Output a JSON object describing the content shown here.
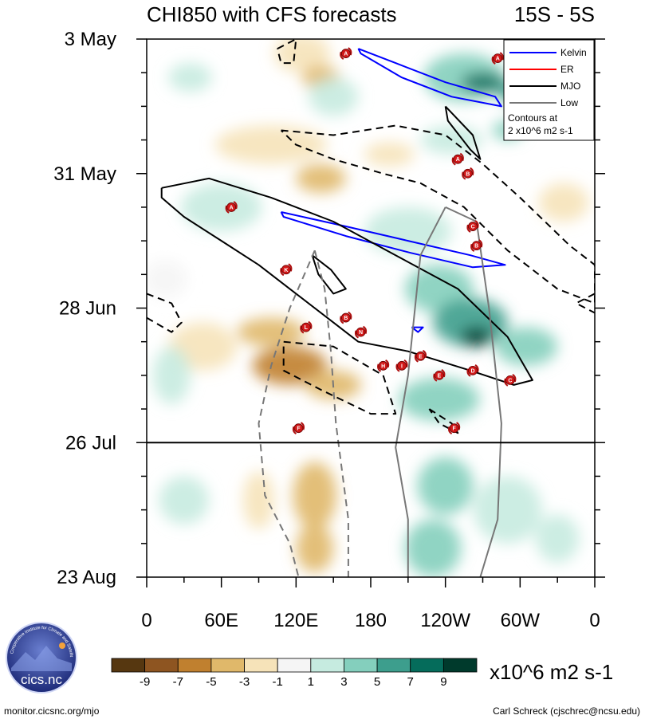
{
  "chart_data": {
    "type": "heatmap",
    "title": "CHI850 with CFS forecasts",
    "region": "15S - 5S",
    "xlabel": "",
    "ylabel": "",
    "x_ticks": [
      {
        "lon": 0,
        "label": "0"
      },
      {
        "lon": 60,
        "label": "60E"
      },
      {
        "lon": 120,
        "label": "120E"
      },
      {
        "lon": 180,
        "label": "180"
      },
      {
        "lon": 240,
        "label": "120W"
      },
      {
        "lon": 300,
        "label": "60W"
      },
      {
        "lon": 360,
        "label": "0"
      }
    ],
    "xlim": [
      0,
      360
    ],
    "y_ticks": [
      {
        "day": 0,
        "label": "3 May"
      },
      {
        "day": 28,
        "label": "31 May"
      },
      {
        "day": 56,
        "label": "28 Jun"
      },
      {
        "day": 84,
        "label": "26 Jul"
      },
      {
        "day": 112,
        "label": "23 Aug"
      }
    ],
    "ylim_days": [
      0,
      112
    ],
    "forecast_start_day": 84,
    "colorbar": {
      "units": "x10^6 m2 s-1",
      "levels": [
        -9,
        -7,
        -5,
        -3,
        -1,
        1,
        3,
        5,
        7,
        9
      ],
      "labels": [
        "-9",
        "-7",
        "-5",
        "-3",
        "-1",
        "1",
        "3",
        "5",
        "7",
        "9"
      ],
      "colors": [
        "#563710",
        "#8e5521",
        "#c0802f",
        "#e0b86a",
        "#f6e3b9",
        "#f5f5f5",
        "#c6ebe0",
        "#84cfbd",
        "#3d9e8d",
        "#056c5b",
        "#003a2c"
      ]
    },
    "anomaly_blobs": [
      {
        "lon": 125,
        "day": 3,
        "w": 45,
        "h": 8,
        "v": -2
      },
      {
        "lon": 140,
        "day": 8,
        "w": 30,
        "h": 5,
        "v": -3.5
      },
      {
        "lon": 35,
        "day": 8,
        "w": 35,
        "h": 6,
        "v": 1.5
      },
      {
        "lon": 255,
        "day": 8,
        "w": 65,
        "h": 10,
        "v": 4
      },
      {
        "lon": 270,
        "day": 9,
        "w": 35,
        "h": 4,
        "v": 7
      },
      {
        "lon": 295,
        "day": 11,
        "w": 25,
        "h": 5,
        "v": 5
      },
      {
        "lon": 150,
        "day": 12,
        "w": 40,
        "h": 8,
        "v": 1.5
      },
      {
        "lon": 100,
        "day": 22,
        "w": 90,
        "h": 8,
        "v": -2
      },
      {
        "lon": 140,
        "day": 29,
        "w": 40,
        "h": 6,
        "v": -4
      },
      {
        "lon": 195,
        "day": 24,
        "w": 40,
        "h": 5,
        "v": -1.5
      },
      {
        "lon": 60,
        "day": 35,
        "w": 65,
        "h": 10,
        "v": 2.2
      },
      {
        "lon": 245,
        "day": 21,
        "w": 50,
        "h": 6,
        "v": 2.5
      },
      {
        "lon": 290,
        "day": 19,
        "w": 25,
        "h": 4,
        "v": 3
      },
      {
        "lon": 210,
        "day": 40,
        "w": 70,
        "h": 10,
        "v": 2
      },
      {
        "lon": 335,
        "day": 34,
        "w": 40,
        "h": 8,
        "v": -1.5
      },
      {
        "lon": 15,
        "day": 50,
        "w": 35,
        "h": 8,
        "v": -1
      },
      {
        "lon": 235,
        "day": 52,
        "w": 55,
        "h": 10,
        "v": 3.5
      },
      {
        "lon": 260,
        "day": 59,
        "w": 60,
        "h": 10,
        "v": 5.5
      },
      {
        "lon": 265,
        "day": 62,
        "w": 25,
        "h": 4,
        "v": 9
      },
      {
        "lon": 305,
        "day": 64,
        "w": 50,
        "h": 8,
        "v": 3.5
      },
      {
        "lon": 100,
        "day": 61,
        "w": 55,
        "h": 6,
        "v": -5
      },
      {
        "lon": 115,
        "day": 68,
        "w": 60,
        "h": 8,
        "v": -6
      },
      {
        "lon": 150,
        "day": 72,
        "w": 45,
        "h": 6,
        "v": -4
      },
      {
        "lon": 45,
        "day": 64,
        "w": 55,
        "h": 10,
        "v": -2
      },
      {
        "lon": 235,
        "day": 75,
        "w": 65,
        "h": 9,
        "v": 3.5
      },
      {
        "lon": 20,
        "day": 70,
        "w": 30,
        "h": 12,
        "v": 1.2
      },
      {
        "lon": 30,
        "day": 96,
        "w": 40,
        "h": 10,
        "v": 1.2
      },
      {
        "lon": 135,
        "day": 95,
        "w": 35,
        "h": 14,
        "v": -3.5
      },
      {
        "lon": 135,
        "day": 106,
        "w": 30,
        "h": 10,
        "v": -5
      },
      {
        "lon": 90,
        "day": 96,
        "w": 25,
        "h": 12,
        "v": -2
      },
      {
        "lon": 240,
        "day": 93,
        "w": 45,
        "h": 12,
        "v": 4.5
      },
      {
        "lon": 230,
        "day": 106,
        "w": 45,
        "h": 12,
        "v": 3
      },
      {
        "lon": 290,
        "day": 98,
        "w": 55,
        "h": 14,
        "v": 2
      },
      {
        "lon": 330,
        "day": 104,
        "w": 35,
        "h": 10,
        "v": 1
      }
    ],
    "contours": [
      {
        "type": "Kelvin",
        "sign": "negative",
        "color": "#0000ff",
        "dash": false,
        "points": [
          [
            170,
            2
          ],
          [
            200,
            5
          ],
          [
            240,
            9
          ],
          [
            280,
            12
          ],
          [
            285,
            14
          ],
          [
            245,
            12
          ],
          [
            205,
            8
          ],
          [
            172,
            3
          ],
          [
            170,
            2
          ]
        ]
      },
      {
        "type": "Kelvin",
        "sign": "negative",
        "color": "#0000ff",
        "dash": false,
        "points": [
          [
            108,
            36
          ],
          [
            160,
            39
          ],
          [
            210,
            42
          ],
          [
            260,
            45
          ],
          [
            288,
            47
          ],
          [
            262,
            47.5
          ],
          [
            212,
            44.5
          ],
          [
            160,
            41
          ],
          [
            110,
            37
          ],
          [
            108,
            36
          ]
        ]
      },
      {
        "type": "Kelvin",
        "sign": "negative",
        "color": "#0000ff",
        "dash": false,
        "points": [
          [
            213,
            60
          ],
          [
            222,
            60
          ],
          [
            218,
            61
          ],
          [
            213,
            60
          ]
        ]
      },
      {
        "type": "MJO",
        "sign": "negative",
        "color": "#000000",
        "dash": false,
        "points": [
          [
            12,
            31
          ],
          [
            50,
            29
          ],
          [
            100,
            33
          ],
          [
            150,
            38
          ],
          [
            200,
            45
          ],
          [
            250,
            52
          ],
          [
            290,
            62
          ],
          [
            310,
            71
          ],
          [
            295,
            72
          ],
          [
            260,
            69
          ],
          [
            210,
            65
          ],
          [
            170,
            63
          ],
          [
            150,
            59
          ],
          [
            120,
            53
          ],
          [
            90,
            47
          ],
          [
            60,
            42
          ],
          [
            30,
            37
          ],
          [
            12,
            33
          ],
          [
            12,
            31
          ]
        ]
      },
      {
        "type": "MJO",
        "sign": "negative",
        "color": "#000000",
        "dash": false,
        "points": [
          [
            240,
            14
          ],
          [
            262,
            20
          ],
          [
            268,
            25
          ],
          [
            260,
            23
          ],
          [
            242,
            17
          ],
          [
            240,
            14
          ]
        ]
      },
      {
        "type": "MJO",
        "sign": "negative",
        "color": "#000000",
        "dash": false,
        "points": [
          [
            133,
            45
          ],
          [
            148,
            48
          ],
          [
            160,
            52
          ],
          [
            150,
            53
          ],
          [
            138,
            49
          ],
          [
            133,
            45
          ]
        ]
      },
      {
        "type": "MJO",
        "sign": "positive",
        "color": "#000000",
        "dash": true,
        "points": [
          [
            108,
            19
          ],
          [
            150,
            20
          ],
          [
            200,
            18
          ],
          [
            240,
            20
          ],
          [
            270,
            26
          ],
          [
            300,
            33
          ],
          [
            340,
            43
          ],
          [
            360,
            47
          ],
          [
            360,
            55
          ],
          [
            330,
            52
          ],
          [
            290,
            44
          ],
          [
            255,
            35
          ],
          [
            220,
            30
          ],
          [
            190,
            28
          ],
          [
            150,
            25
          ],
          [
            120,
            22
          ],
          [
            108,
            19
          ]
        ]
      },
      {
        "type": "MJO",
        "sign": "positive",
        "color": "#000000",
        "dash": true,
        "points": [
          [
            110,
            63
          ],
          [
            150,
            64
          ],
          [
            190,
            70
          ],
          [
            200,
            78
          ],
          [
            180,
            78
          ],
          [
            140,
            73
          ],
          [
            110,
            69
          ],
          [
            110,
            63
          ]
        ]
      },
      {
        "type": "MJO",
        "sign": "positive",
        "color": "#000000",
        "dash": true,
        "points": [
          [
            360,
            53
          ],
          [
            345,
            55
          ],
          [
            360,
            57
          ]
        ]
      },
      {
        "type": "MJO",
        "sign": "positive",
        "color": "#000000",
        "dash": true,
        "points": [
          [
            0,
            53
          ],
          [
            20,
            55
          ],
          [
            28,
            59
          ],
          [
            20,
            61
          ],
          [
            0,
            58
          ]
        ]
      },
      {
        "type": "MJO",
        "sign": "positive",
        "color": "#000000",
        "dash": true,
        "points": [
          [
            105,
            2
          ],
          [
            120,
            0
          ],
          [
            118,
            5
          ],
          [
            108,
            5
          ],
          [
            105,
            2
          ]
        ]
      },
      {
        "type": "MJO",
        "sign": "negative",
        "color": "#000000",
        "dash": true,
        "points": [
          [
            227,
            77
          ],
          [
            245,
            80
          ],
          [
            250,
            82
          ],
          [
            235,
            80
          ],
          [
            227,
            77
          ]
        ]
      },
      {
        "type": "Low",
        "sign": "positive",
        "color": "#777777",
        "dash": true,
        "points": [
          [
            135,
            44
          ],
          [
            143,
            52
          ],
          [
            148,
            65
          ],
          [
            152,
            80
          ],
          [
            162,
            100
          ],
          [
            162,
            112
          ]
        ]
      },
      {
        "type": "Low",
        "sign": "positive",
        "color": "#777777",
        "dash": true,
        "points": [
          [
            135,
            44
          ],
          [
            115,
            56
          ],
          [
            100,
            68
          ],
          [
            90,
            80
          ],
          [
            95,
            95
          ],
          [
            115,
            105
          ],
          [
            122,
            112
          ]
        ]
      },
      {
        "type": "Low",
        "sign": "negative",
        "color": "#777777",
        "dash": false,
        "points": [
          [
            240,
            35
          ],
          [
            265,
            38
          ],
          [
            275,
            56
          ],
          [
            285,
            80
          ],
          [
            282,
            100
          ],
          [
            268,
            112
          ]
        ]
      },
      {
        "type": "Low",
        "sign": "negative",
        "color": "#777777",
        "dash": false,
        "points": [
          [
            240,
            35
          ],
          [
            220,
            45
          ],
          [
            210,
            70
          ],
          [
            200,
            85
          ],
          [
            210,
            100
          ],
          [
            210,
            112
          ]
        ]
      }
    ],
    "storms": [
      {
        "label": "A",
        "lon": 160,
        "day": 3
      },
      {
        "label": "A",
        "lon": 282,
        "day": 4
      },
      {
        "label": "A",
        "lon": 250,
        "day": 25
      },
      {
        "label": "B",
        "lon": 258,
        "day": 28
      },
      {
        "label": "A",
        "lon": 68,
        "day": 35
      },
      {
        "label": "C",
        "lon": 262,
        "day": 39
      },
      {
        "label": "B",
        "lon": 265,
        "day": 43
      },
      {
        "label": "K",
        "lon": 112,
        "day": 48
      },
      {
        "label": "B",
        "lon": 160,
        "day": 58
      },
      {
        "label": "L",
        "lon": 128,
        "day": 60
      },
      {
        "label": "N",
        "lon": 172,
        "day": 61
      },
      {
        "label": "E",
        "lon": 220,
        "day": 66
      },
      {
        "label": "H",
        "lon": 190,
        "day": 68
      },
      {
        "label": "I",
        "lon": 205,
        "day": 68
      },
      {
        "label": "D",
        "lon": 262,
        "day": 69
      },
      {
        "label": "E",
        "lon": 235,
        "day": 70
      },
      {
        "label": "C",
        "lon": 292,
        "day": 71
      },
      {
        "label": "F",
        "lon": 247,
        "day": 81
      },
      {
        "label": "F",
        "lon": 122,
        "day": 81
      }
    ],
    "legend": {
      "placement": "top-right",
      "entries": [
        {
          "label": "Kelvin",
          "color": "#0000ff"
        },
        {
          "label": "ER",
          "color": "#ff0000"
        },
        {
          "label": "MJO",
          "color": "#000000"
        },
        {
          "label": "Low",
          "color": "#777777"
        }
      ],
      "note_line1": "Contours at",
      "note_line2": "2 x10^6 m2 s-1"
    }
  },
  "logo": {
    "text": "cics.nc",
    "ring_text": "Cooperative Institute for Climate and Satellites"
  },
  "footer": {
    "left": "monitor.cicsnc.org/mjo",
    "right": "Carl Schreck (cjschrec@ncsu.edu)"
  }
}
